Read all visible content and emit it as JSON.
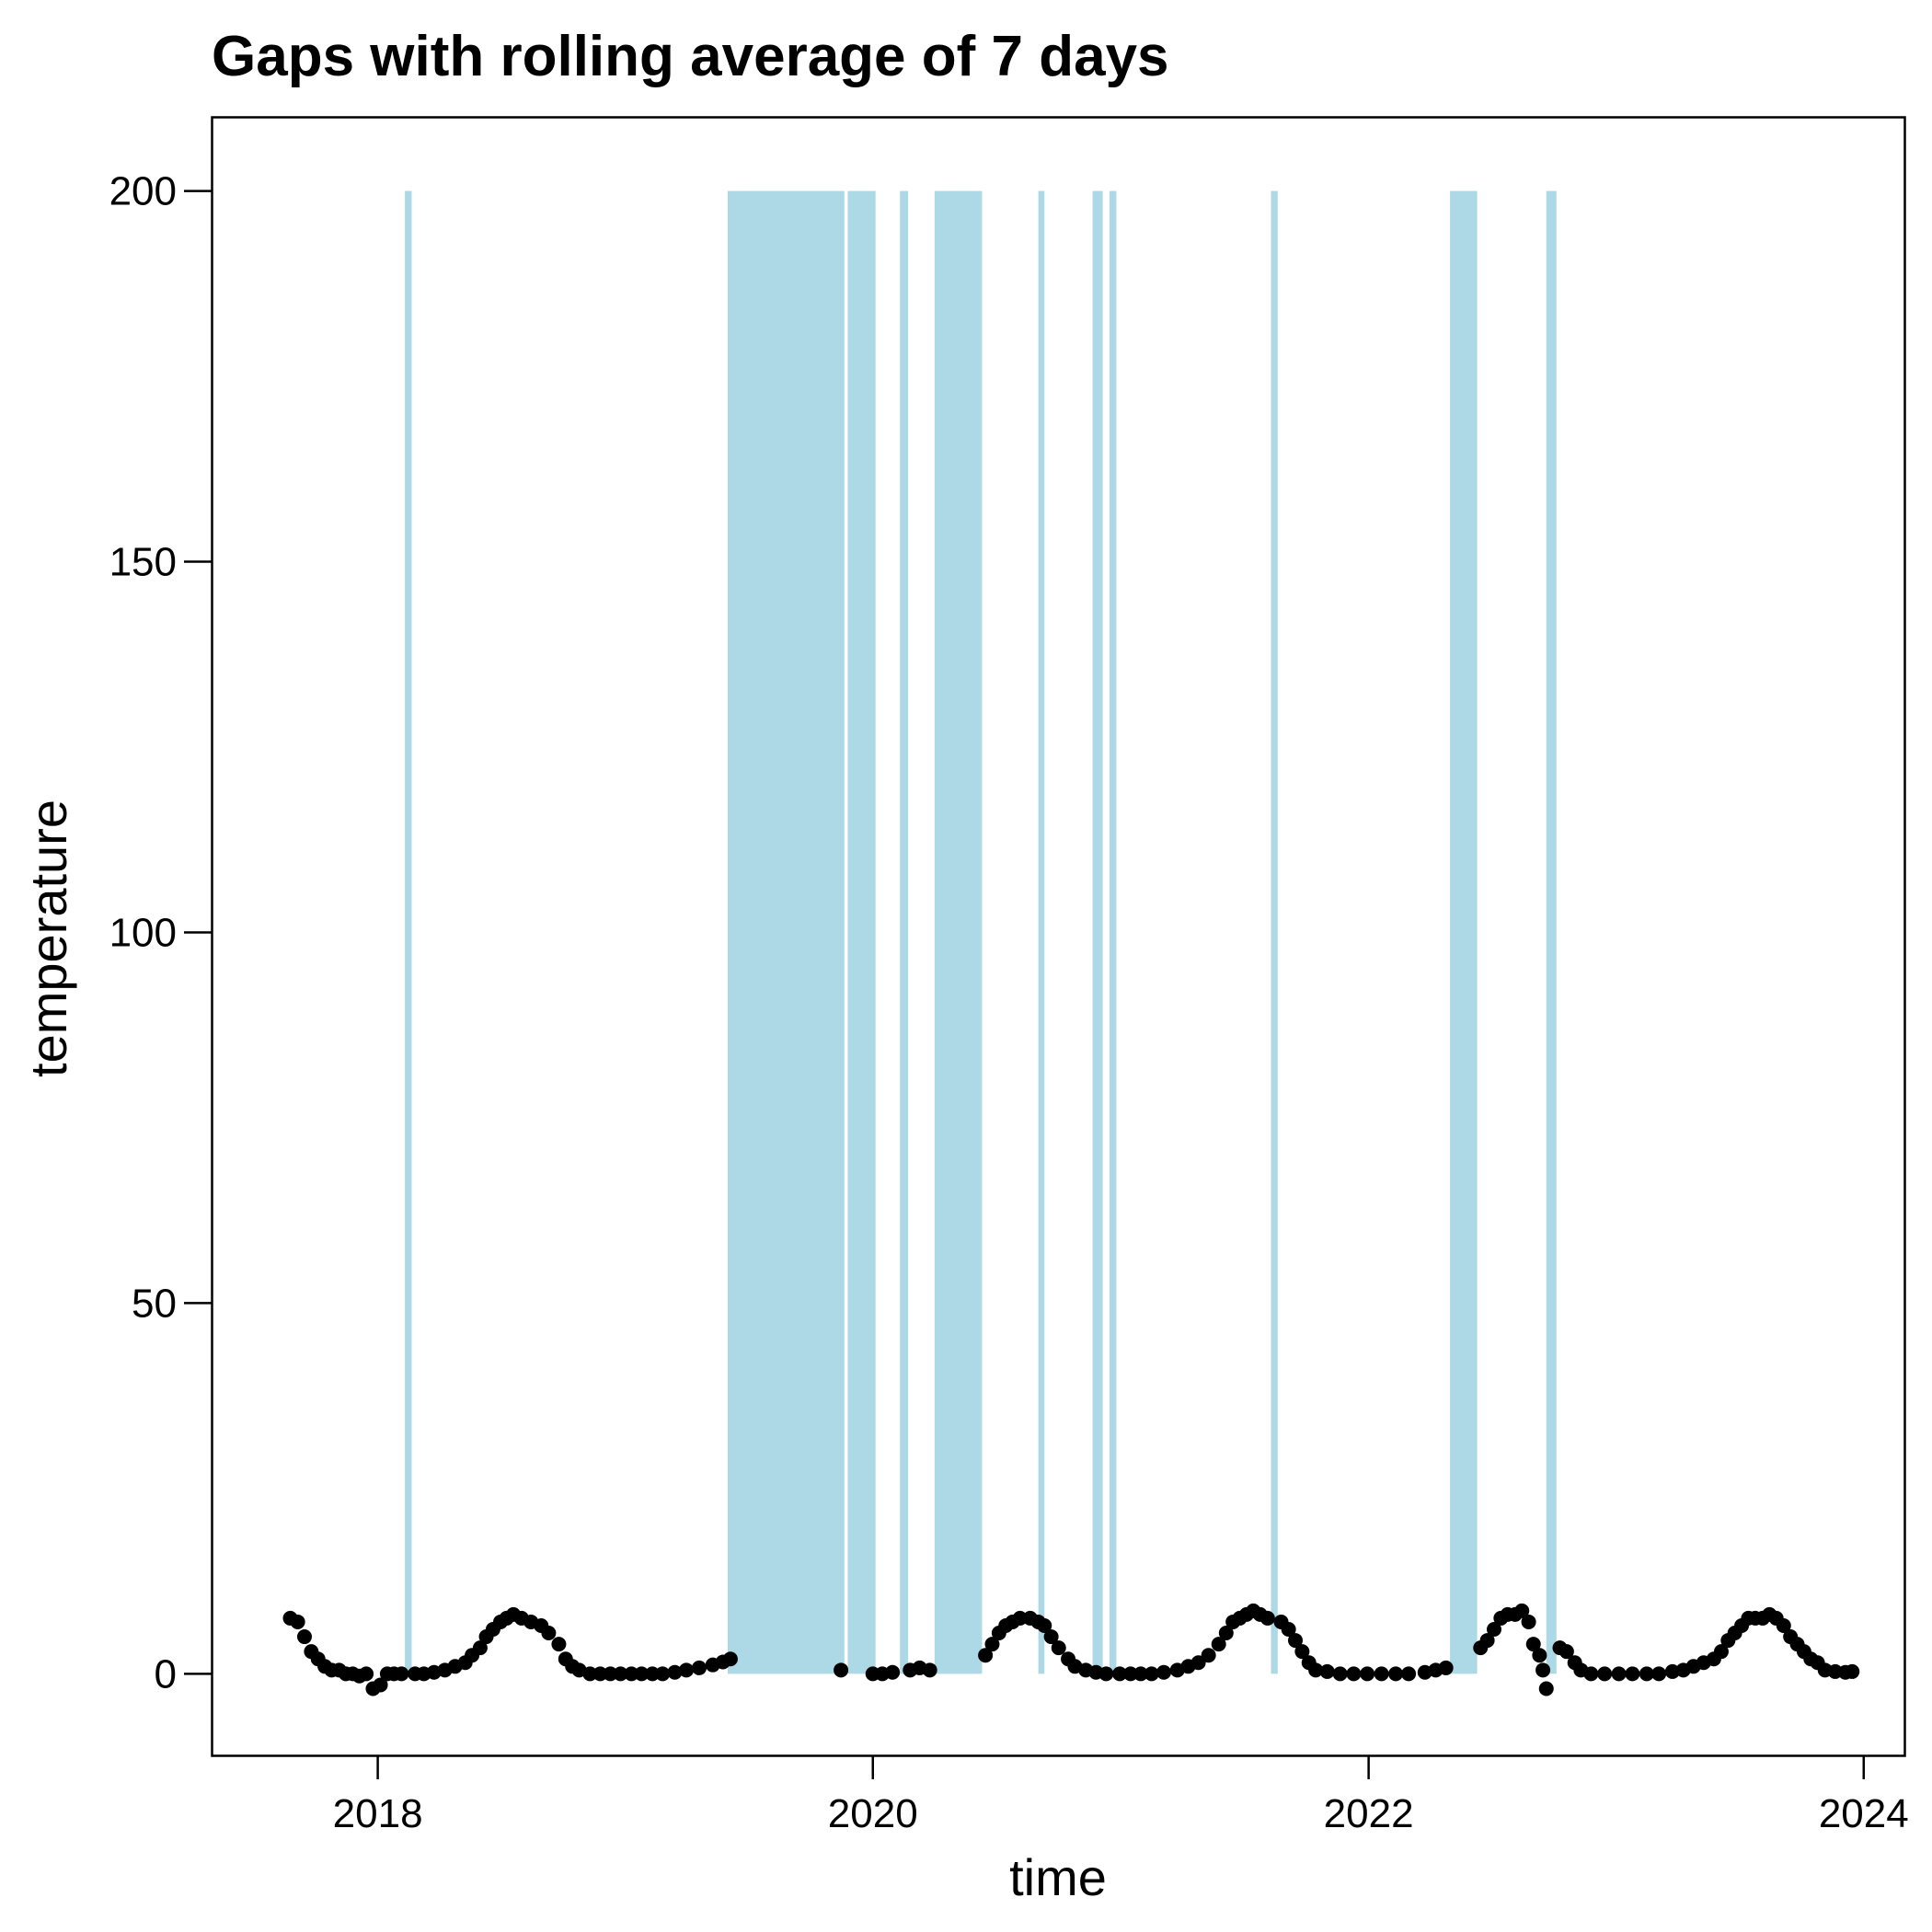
{
  "chart_data": {
    "type": "scatter",
    "title": "Gaps with rolling average of 7 days",
    "xlabel": "time",
    "ylabel": "temperature",
    "xlim": [
      "2017-05-01",
      "2024-03-01"
    ],
    "ylim": [
      -11,
      210
    ],
    "x_ticks": [
      {
        "date": "2018-01-01",
        "label": "2018"
      },
      {
        "date": "2020-01-01",
        "label": "2020"
      },
      {
        "date": "2022-01-01",
        "label": "2022"
      },
      {
        "date": "2024-01-01",
        "label": "2024"
      }
    ],
    "y_ticks": [
      0,
      50,
      100,
      150,
      200
    ],
    "grid": false,
    "colors": {
      "gap": "#add8e6",
      "point": "#000000"
    },
    "gaps": {
      "name": "gaps",
      "top": 200,
      "bottom": 0,
      "periods": [
        [
          "2018-02-10",
          "2018-02-20"
        ],
        [
          "2019-06-01",
          "2019-11-20"
        ],
        [
          "2019-11-25",
          "2020-01-05"
        ],
        [
          "2020-02-10",
          "2020-02-22"
        ],
        [
          "2020-04-01",
          "2020-06-10"
        ],
        [
          "2020-09-01",
          "2020-09-10"
        ],
        [
          "2020-11-20",
          "2020-12-05"
        ],
        [
          "2020-12-15",
          "2020-12-25"
        ],
        [
          "2021-08-10",
          "2021-08-20"
        ],
        [
          "2022-05-01",
          "2022-06-10"
        ],
        [
          "2022-09-20",
          "2022-10-05"
        ]
      ]
    },
    "series": [
      {
        "points": [
          [
            "2017-08-25",
            7.5
          ],
          [
            "2017-09-05",
            7
          ],
          [
            "2017-09-15",
            5
          ],
          [
            "2017-09-25",
            3
          ],
          [
            "2017-10-05",
            2
          ],
          [
            "2017-10-15",
            1
          ],
          [
            "2017-10-25",
            0.5
          ],
          [
            "2017-11-05",
            0.5
          ],
          [
            "2017-11-15",
            0
          ],
          [
            "2017-11-25",
            0
          ],
          [
            "2017-12-05",
            -0.3
          ],
          [
            "2017-12-15",
            0
          ],
          [
            "2017-12-25",
            -2
          ],
          [
            "2018-01-05",
            -1.5
          ],
          [
            "2018-01-15",
            0
          ],
          [
            "2018-01-25",
            0
          ],
          [
            "2018-02-05",
            0
          ],
          [
            "2018-02-25",
            0
          ],
          [
            "2018-03-10",
            0
          ],
          [
            "2018-03-25",
            0.2
          ],
          [
            "2018-04-10",
            0.5
          ],
          [
            "2018-04-25",
            1
          ],
          [
            "2018-05-10",
            1.5
          ],
          [
            "2018-05-20",
            2.5
          ],
          [
            "2018-06-01",
            3.5
          ],
          [
            "2018-06-10",
            5
          ],
          [
            "2018-06-20",
            6
          ],
          [
            "2018-07-01",
            7
          ],
          [
            "2018-07-10",
            7.5
          ],
          [
            "2018-07-20",
            8
          ],
          [
            "2018-08-01",
            7.5
          ],
          [
            "2018-08-15",
            7
          ],
          [
            "2018-08-30",
            6.5
          ],
          [
            "2018-09-10",
            5.5
          ],
          [
            "2018-09-25",
            4
          ],
          [
            "2018-10-05",
            2
          ],
          [
            "2018-10-15",
            1
          ],
          [
            "2018-10-25",
            0.5
          ],
          [
            "2018-11-10",
            0
          ],
          [
            "2018-11-25",
            0
          ],
          [
            "2018-12-10",
            0
          ],
          [
            "2018-12-25",
            0
          ],
          [
            "2019-01-10",
            0
          ],
          [
            "2019-01-25",
            0
          ],
          [
            "2019-02-10",
            0
          ],
          [
            "2019-02-25",
            0
          ],
          [
            "2019-03-15",
            0.2
          ],
          [
            "2019-04-01",
            0.5
          ],
          [
            "2019-04-20",
            0.8
          ],
          [
            "2019-05-10",
            1.2
          ],
          [
            "2019-05-25",
            1.6
          ],
          [
            "2019-06-05",
            2
          ],
          [
            "2019-11-15",
            0.5
          ],
          [
            "2020-01-01",
            0
          ],
          [
            "2020-01-15",
            0
          ],
          [
            "2020-01-30",
            0.2
          ],
          [
            "2020-02-25",
            0.5
          ],
          [
            "2020-03-10",
            0.8
          ],
          [
            "2020-03-25",
            0.5
          ],
          [
            "2020-06-15",
            2.5
          ],
          [
            "2020-06-25",
            4
          ],
          [
            "2020-07-05",
            5.5
          ],
          [
            "2020-07-15",
            6.5
          ],
          [
            "2020-07-25",
            7
          ],
          [
            "2020-08-05",
            7.5
          ],
          [
            "2020-08-20",
            7.5
          ],
          [
            "2020-09-01",
            7
          ],
          [
            "2020-09-10",
            6.5
          ],
          [
            "2020-09-20",
            5
          ],
          [
            "2020-10-01",
            3.5
          ],
          [
            "2020-10-15",
            2
          ],
          [
            "2020-10-25",
            1
          ],
          [
            "2020-11-10",
            0.5
          ],
          [
            "2020-11-25",
            0.2
          ],
          [
            "2020-12-10",
            0
          ],
          [
            "2020-12-30",
            0
          ],
          [
            "2021-01-15",
            0
          ],
          [
            "2021-01-30",
            0
          ],
          [
            "2021-02-15",
            0
          ],
          [
            "2021-03-05",
            0.2
          ],
          [
            "2021-03-25",
            0.5
          ],
          [
            "2021-04-10",
            1
          ],
          [
            "2021-04-25",
            1.5
          ],
          [
            "2021-05-10",
            2.5
          ],
          [
            "2021-05-25",
            4
          ],
          [
            "2021-06-05",
            5.5
          ],
          [
            "2021-06-15",
            7
          ],
          [
            "2021-06-25",
            7.5
          ],
          [
            "2021-07-05",
            8
          ],
          [
            "2021-07-15",
            8.5
          ],
          [
            "2021-07-25",
            8
          ],
          [
            "2021-08-05",
            7.5
          ],
          [
            "2021-08-25",
            7
          ],
          [
            "2021-09-05",
            6
          ],
          [
            "2021-09-15",
            4.5
          ],
          [
            "2021-09-25",
            3
          ],
          [
            "2021-10-05",
            1.5
          ],
          [
            "2021-10-15",
            0.5
          ],
          [
            "2021-11-01",
            0.3
          ],
          [
            "2021-11-20",
            0
          ],
          [
            "2021-12-10",
            0
          ],
          [
            "2021-12-30",
            0
          ],
          [
            "2022-01-20",
            0
          ],
          [
            "2022-02-10",
            0
          ],
          [
            "2022-03-01",
            0
          ],
          [
            "2022-03-25",
            0.2
          ],
          [
            "2022-04-10",
            0.5
          ],
          [
            "2022-04-25",
            0.8
          ],
          [
            "2022-06-15",
            3.5
          ],
          [
            "2022-06-25",
            4.5
          ],
          [
            "2022-07-05",
            6
          ],
          [
            "2022-07-15",
            7.5
          ],
          [
            "2022-07-25",
            8
          ],
          [
            "2022-08-05",
            8
          ],
          [
            "2022-08-15",
            8.5
          ],
          [
            "2022-08-25",
            7
          ],
          [
            "2022-09-01",
            4
          ],
          [
            "2022-09-10",
            2.5
          ],
          [
            "2022-09-15",
            0.5
          ],
          [
            "2022-09-20",
            -2
          ],
          [
            "2022-10-10",
            3.5
          ],
          [
            "2022-10-20",
            3
          ],
          [
            "2022-11-01",
            1.5
          ],
          [
            "2022-11-10",
            0.5
          ],
          [
            "2022-11-25",
            0
          ],
          [
            "2022-12-15",
            0
          ],
          [
            "2023-01-05",
            0
          ],
          [
            "2023-01-25",
            0
          ],
          [
            "2023-02-15",
            0
          ],
          [
            "2023-03-05",
            0
          ],
          [
            "2023-03-25",
            0.3
          ],
          [
            "2023-04-10",
            0.5
          ],
          [
            "2023-04-25",
            1
          ],
          [
            "2023-05-10",
            1.5
          ],
          [
            "2023-05-25",
            2
          ],
          [
            "2023-06-05",
            3
          ],
          [
            "2023-06-15",
            4.5
          ],
          [
            "2023-06-25",
            5.5
          ],
          [
            "2023-07-05",
            6.5
          ],
          [
            "2023-07-15",
            7.5
          ],
          [
            "2023-07-25",
            7.5
          ],
          [
            "2023-08-05",
            7.5
          ],
          [
            "2023-08-15",
            8
          ],
          [
            "2023-08-25",
            7.5
          ],
          [
            "2023-09-05",
            6.5
          ],
          [
            "2023-09-15",
            5
          ],
          [
            "2023-09-25",
            4
          ],
          [
            "2023-10-05",
            3
          ],
          [
            "2023-10-15",
            2
          ],
          [
            "2023-10-25",
            1.5
          ],
          [
            "2023-11-05",
            0.5
          ],
          [
            "2023-11-20",
            0.3
          ],
          [
            "2023-12-05",
            0.2
          ],
          [
            "2023-12-15",
            0.3
          ]
        ]
      }
    ]
  }
}
